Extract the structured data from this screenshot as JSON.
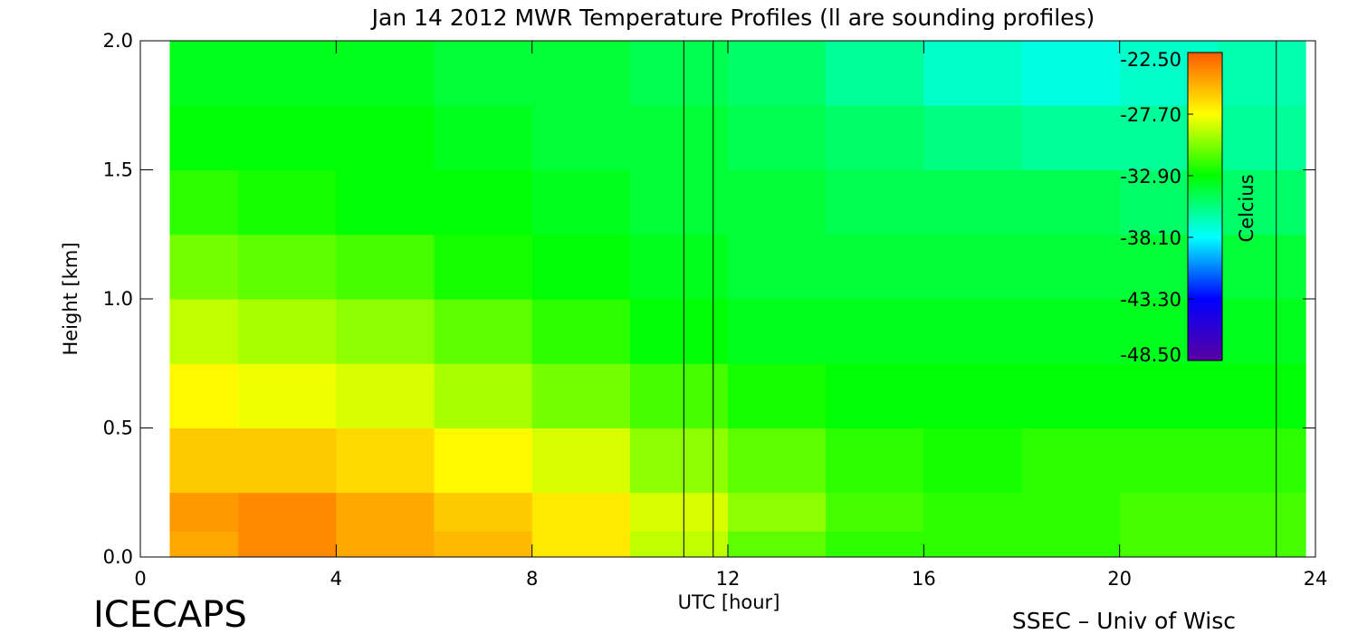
{
  "chart_data": {
    "type": "heatmap",
    "title": "Jan 14 2012 MWR Temperature Profiles (ll are sounding profiles)",
    "x_label": "UTC [hour]",
    "y_label": "Height [km]",
    "xlim": [
      0,
      24
    ],
    "ylim": [
      0,
      2
    ],
    "xticks": [
      0,
      4,
      8,
      12,
      16,
      20,
      24
    ],
    "yticks": [
      {
        "value": 0,
        "label": "0.0"
      },
      {
        "value": 0.5,
        "label": "0.5"
      },
      {
        "value": 1,
        "label": "1.0"
      },
      {
        "value": 1.5,
        "label": "1.5"
      },
      {
        "value": 2,
        "label": "2.0"
      }
    ],
    "xbins": [
      0.6,
      2,
      4,
      6,
      8,
      10,
      12,
      14,
      16,
      18,
      20,
      22,
      23.8
    ],
    "ybins": [
      0,
      0.1,
      0.25,
      0.5,
      0.75,
      1.0,
      1.25,
      1.5,
      1.75,
      2.0
    ],
    "z": [
      [
        -25,
        -24,
        -25,
        -25.5,
        -27,
        -29,
        -31,
        -32,
        -32,
        -32,
        -31.5,
        -31.5
      ],
      [
        -24.5,
        -24,
        -25,
        -26,
        -27,
        -28.5,
        -30,
        -31.5,
        -32,
        -32,
        -31.5,
        -31.5
      ],
      [
        -26,
        -26,
        -26.5,
        -27.5,
        -28.5,
        -30,
        -31,
        -32,
        -32.5,
        -32,
        -32,
        -32
      ],
      [
        -27.5,
        -28,
        -28.5,
        -29.5,
        -30.5,
        -31.5,
        -32.5,
        -33,
        -33,
        -33,
        -33,
        -33
      ],
      [
        -29,
        -29.5,
        -30,
        -31,
        -32,
        -33,
        -33.5,
        -33.5,
        -33.5,
        -33.5,
        -33.5,
        -33.5
      ],
      [
        -30.5,
        -31,
        -31.5,
        -32.5,
        -33,
        -33.5,
        -34,
        -34,
        -34,
        -34,
        -34,
        -34
      ],
      [
        -32,
        -32.5,
        -33,
        -33,
        -33.5,
        -34,
        -34,
        -34.5,
        -34.5,
        -34.5,
        -35,
        -35
      ],
      [
        -33,
        -33,
        -33,
        -33.5,
        -34,
        -34,
        -34.5,
        -35,
        -35.5,
        -36,
        -36,
        -36
      ],
      [
        -33.5,
        -33.5,
        -33.5,
        -34,
        -34,
        -34.5,
        -35,
        -36,
        -37,
        -37.5,
        -37,
        -36.5
      ]
    ],
    "soundings": [
      11.1,
      11.7,
      23.2
    ],
    "clim": [
      -48.5,
      -22.5
    ],
    "colormap": [
      "#5a00a0",
      "#0000ff",
      "#00ffff",
      "#00ff00",
      "#ffff00",
      "#ff5a00"
    ],
    "cticks": [
      {
        "value": -22.5,
        "label": "-22.50"
      },
      {
        "value": -27.7,
        "label": "-27.70"
      },
      {
        "value": -32.9,
        "label": "-32.90"
      },
      {
        "value": -38.1,
        "label": "-38.10"
      },
      {
        "value": -43.3,
        "label": "-43.30"
      },
      {
        "value": -48.5,
        "label": "-48.50"
      }
    ],
    "colorbar_label": "Celcius"
  },
  "footer": {
    "left": "ICECAPS",
    "right": "SSEC – Univ of Wisc"
  }
}
